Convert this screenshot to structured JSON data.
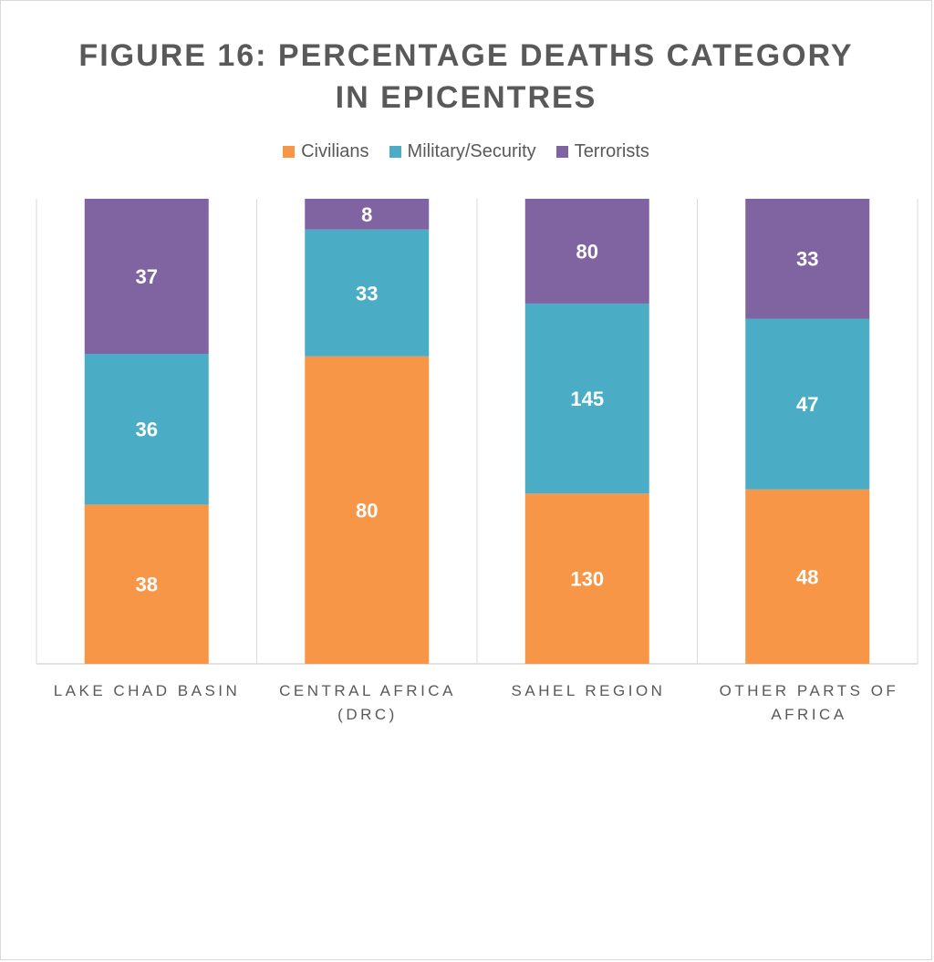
{
  "chart_data": {
    "type": "bar",
    "stacked": true,
    "title_lines": [
      "FIGURE 16: PERCENTAGE DEATHS CATEGORY",
      "IN EPICENTRES"
    ],
    "legend_position": "top",
    "categories": [
      [
        "LAKE CHAD BASIN"
      ],
      [
        "CENTRAL AFRICA",
        "(DRC)"
      ],
      [
        "SAHEL REGION"
      ],
      [
        "OTHER PARTS OF",
        "AFRICA"
      ]
    ],
    "series": [
      {
        "name": "Civilians",
        "color": "#f79646",
        "values": [
          38,
          80,
          130,
          48
        ]
      },
      {
        "name": "Military/Security",
        "color": "#4bacc6",
        "values": [
          36,
          33,
          145,
          47
        ]
      },
      {
        "name": "Terrorists",
        "color": "#8064a2",
        "values": [
          37,
          8,
          80,
          33
        ]
      }
    ],
    "grid": "vertical separators between categories"
  }
}
